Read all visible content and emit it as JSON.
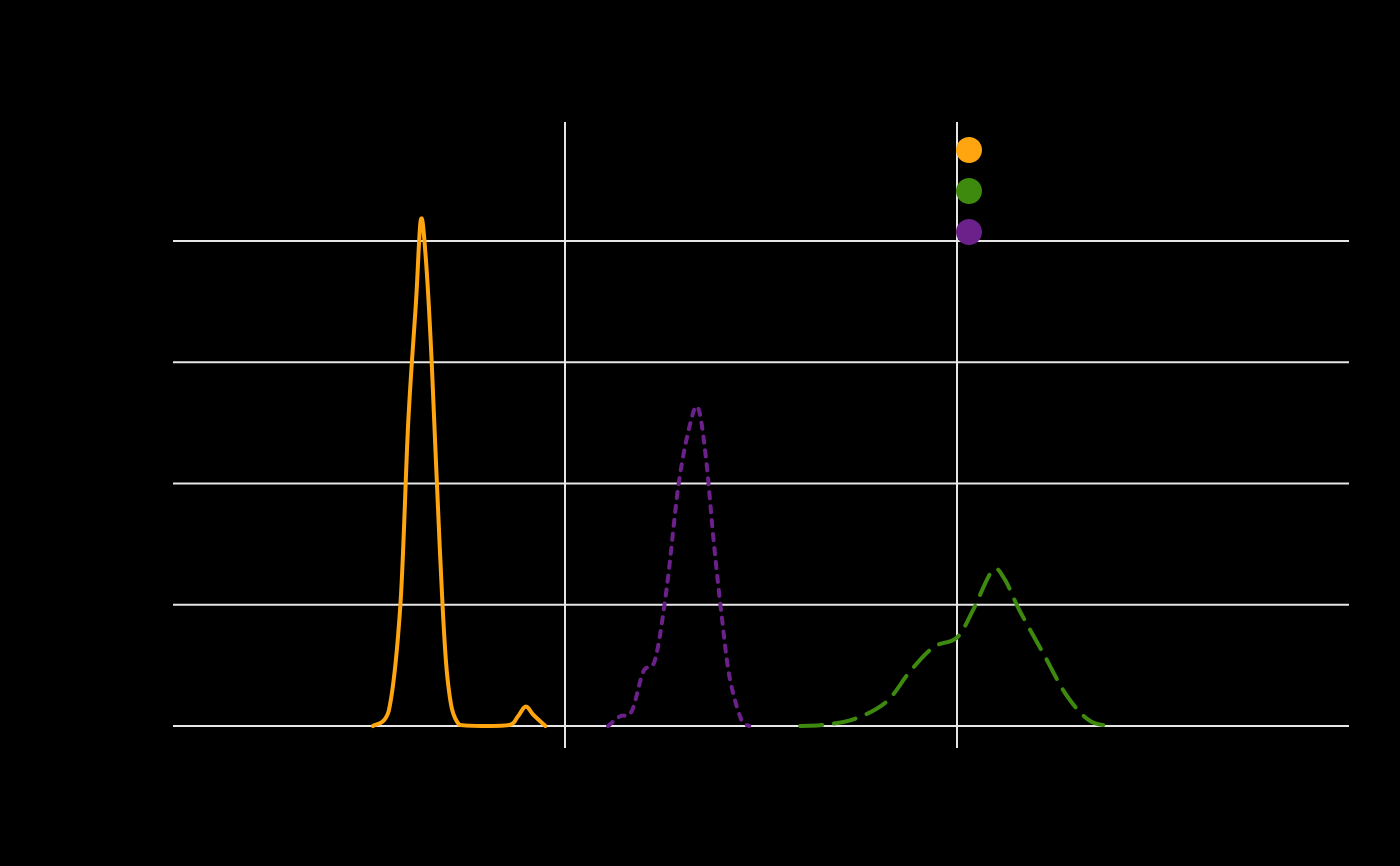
{
  "chart_data": {
    "type": "line",
    "title": "",
    "xlabel": "",
    "ylabel": "",
    "xlim": [
      -0.5,
      1.0
    ],
    "ylim": [
      0,
      0.04
    ],
    "x_ticks": [
      0.0,
      0.5
    ],
    "y_ticks": [
      0.0,
      0.01,
      0.02,
      0.03,
      0.04
    ],
    "grid": true,
    "legend": {
      "placement": "top-right"
    },
    "series": [
      {
        "name": "",
        "color": "#FFA510",
        "dash": "solid",
        "points": [
          [
            -0.245,
            0.0
          ],
          [
            -0.225,
            0.0012
          ],
          [
            -0.21,
            0.01
          ],
          [
            -0.2,
            0.025
          ],
          [
            -0.19,
            0.035
          ],
          [
            -0.184,
            0.0417
          ],
          [
            -0.178,
            0.039
          ],
          [
            -0.17,
            0.03
          ],
          [
            -0.16,
            0.015
          ],
          [
            -0.15,
            0.004
          ],
          [
            -0.135,
            0.0001
          ],
          [
            -0.1,
            0.0
          ],
          [
            -0.07,
            0.0001
          ],
          [
            -0.06,
            0.0008
          ],
          [
            -0.05,
            0.0016
          ],
          [
            -0.04,
            0.0009
          ],
          [
            -0.025,
            0.0
          ]
        ]
      },
      {
        "name": "",
        "color": "#3E8A0E",
        "dash": "dashed",
        "points": [
          [
            0.3,
            0.0
          ],
          [
            0.33,
            0.0001
          ],
          [
            0.37,
            0.0006
          ],
          [
            0.41,
            0.002
          ],
          [
            0.44,
            0.0045
          ],
          [
            0.47,
            0.0065
          ],
          [
            0.5,
            0.0073
          ],
          [
            0.52,
            0.0095
          ],
          [
            0.545,
            0.0128
          ],
          [
            0.56,
            0.0122
          ],
          [
            0.58,
            0.0095
          ],
          [
            0.61,
            0.006
          ],
          [
            0.64,
            0.0025
          ],
          [
            0.67,
            0.0004
          ],
          [
            0.7,
            0.0
          ]
        ]
      },
      {
        "name": "",
        "color": "#6B2189",
        "dash": "dotted",
        "points": [
          [
            0.055,
            0.0
          ],
          [
            0.07,
            0.0008
          ],
          [
            0.085,
            0.0012
          ],
          [
            0.1,
            0.0045
          ],
          [
            0.115,
            0.0055
          ],
          [
            0.13,
            0.0115
          ],
          [
            0.145,
            0.02
          ],
          [
            0.16,
            0.025
          ],
          [
            0.17,
            0.0262
          ],
          [
            0.18,
            0.022
          ],
          [
            0.19,
            0.015
          ],
          [
            0.2,
            0.009
          ],
          [
            0.21,
            0.004
          ],
          [
            0.225,
            0.0005
          ],
          [
            0.235,
            0.0
          ]
        ]
      }
    ]
  }
}
